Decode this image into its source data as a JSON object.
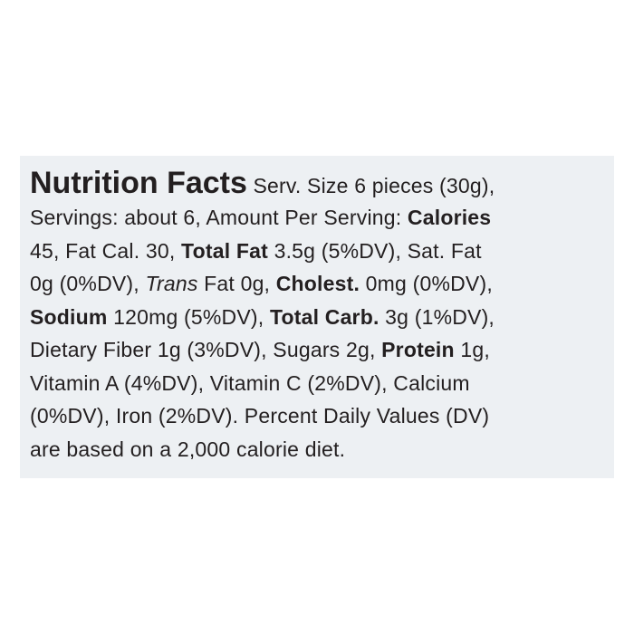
{
  "label": {
    "lines": [
      [
        "Nutrition Facts",
        " Serv. Size 6 pieces (30g),"
      ],
      [
        "Servings: about 6, Amount Per Serving: ",
        "Calories"
      ],
      [
        "45, Fat Cal. 30, ",
        "Total Fat",
        " 3.5g (5%DV), Sat. Fat"
      ],
      [
        "0g (0%DV), ",
        "Trans",
        " Fat 0g, ",
        "Cholest.",
        " 0mg (0%DV),"
      ],
      [
        "Sodium",
        " 120mg (5%DV), ",
        "Total Carb.",
        " 3g (1%DV),"
      ],
      [
        "Dietary Fiber 1g (3%DV), Sugars 2g, ",
        "Protein",
        " 1g,"
      ],
      [
        "Vitamin A (4%DV), Vitamin C (2%DV), Calcium"
      ],
      [
        "(0%DV), Iron (2%DV). Percent Daily Values (DV)"
      ],
      [
        "are based on a 2,000 calorie diet."
      ]
    ]
  }
}
